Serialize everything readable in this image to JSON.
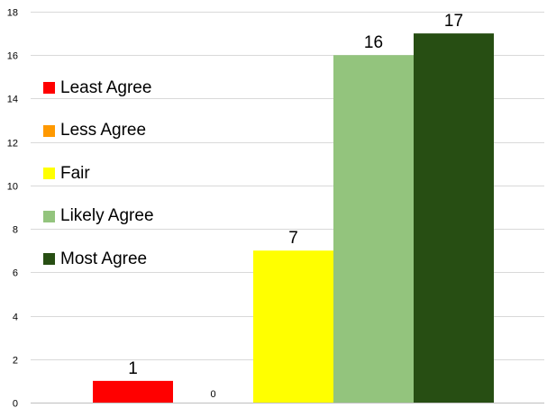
{
  "chart_data": {
    "type": "bar",
    "categories": [
      "Least Agree",
      "Less Agree",
      "Fair",
      "Likely Agree",
      "Most Agree"
    ],
    "values": [
      1,
      0,
      7,
      16,
      17
    ],
    "colors": [
      "#ff0000",
      "#ff9900",
      "#ffff00",
      "#93c47d",
      "#274e13"
    ],
    "title": "",
    "xlabel": "",
    "ylabel": "",
    "ylim": [
      0,
      18
    ],
    "yticks": [
      0,
      2,
      4,
      6,
      8,
      10,
      12,
      14,
      16,
      18
    ],
    "grid": true,
    "legend": {
      "position": "left",
      "entries": [
        "Least Agree",
        "Less Agree",
        "Fair",
        "Likely Agree",
        "Most Agree"
      ]
    }
  }
}
